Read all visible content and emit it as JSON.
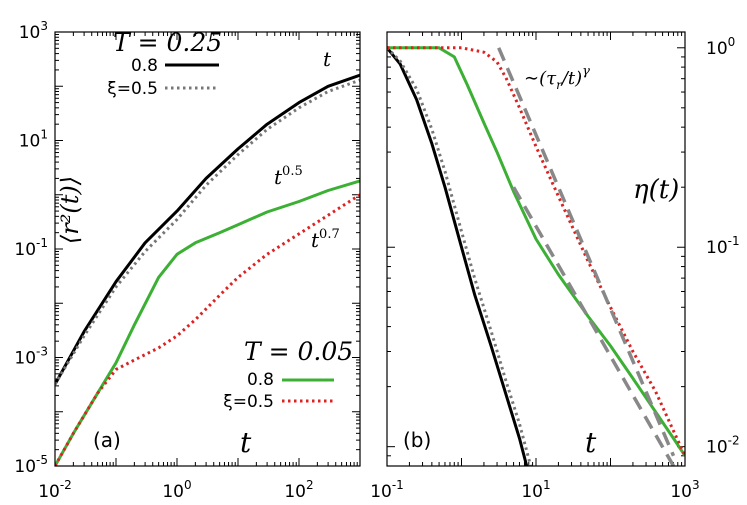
{
  "chart_data": [
    {
      "type": "line",
      "panel_label": "(a)",
      "xlabel": "t",
      "ylabel": "⟨r²(t)⟩",
      "xscale": "log",
      "yscale": "log",
      "xlim": [
        0.01,
        1000
      ],
      "ylim": [
        1e-05,
        1000
      ],
      "x_tick_labels": [
        {
          "base": "10",
          "exp": "-2"
        },
        {
          "base": "10",
          "exp": "0"
        },
        {
          "base": "10",
          "exp": "2"
        }
      ],
      "y_tick_labels": [
        {
          "base": "10",
          "exp": "-5"
        },
        {
          "base": "10",
          "exp": "-3"
        },
        {
          "base": "10",
          "exp": "-1"
        },
        {
          "base": "10",
          "exp": "1"
        },
        {
          "base": "10",
          "exp": "3"
        }
      ],
      "legend_groups": [
        {
          "title": "T = 0.25",
          "placement": "top-left",
          "entries": [
            "0.8",
            "ξ=0.5"
          ]
        },
        {
          "title": "T = 0.05",
          "placement": "bottom-right",
          "entries": [
            "0.8",
            "ξ=0.5"
          ]
        }
      ],
      "annotations": [
        {
          "text": "t",
          "sup": ""
        },
        {
          "text": "t",
          "sup": "0.5"
        },
        {
          "text": "t",
          "sup": "0.7"
        }
      ],
      "series": [
        {
          "legend_group": 0,
          "label": "0.8",
          "color": "#000000",
          "dash": "solid",
          "x": [
            0.01,
            0.03,
            0.1,
            0.3,
            1,
            3,
            10,
            30,
            100,
            300,
            1000
          ],
          "y": [
            0.00032,
            0.003,
            0.025,
            0.13,
            0.5,
            2.0,
            7.0,
            20,
            50,
            100,
            160
          ]
        },
        {
          "legend_group": 0,
          "label": "ξ=0.5",
          "color": "#777777",
          "dash": "dotted",
          "x": [
            0.01,
            0.03,
            0.1,
            0.3,
            1,
            3,
            10,
            30,
            100,
            300,
            1000
          ],
          "y": [
            0.00032,
            0.0025,
            0.02,
            0.09,
            0.35,
            1.5,
            5.5,
            16,
            40,
            80,
            130
          ]
        },
        {
          "legend_group": 1,
          "label": "0.8",
          "color": "#3cb034",
          "dash": "solid",
          "x": [
            0.01,
            0.02,
            0.05,
            0.1,
            0.2,
            0.5,
            1,
            2,
            5,
            10,
            30,
            100,
            300,
            1000
          ],
          "y": [
            1e-05,
            4e-05,
            0.00022,
            0.0008,
            0.004,
            0.03,
            0.08,
            0.13,
            0.2,
            0.28,
            0.48,
            0.75,
            1.2,
            1.8
          ]
        },
        {
          "legend_group": 1,
          "label": "ξ=0.5",
          "color": "#dd2222",
          "dash": "dotted",
          "x": [
            0.01,
            0.02,
            0.05,
            0.1,
            0.2,
            0.5,
            1,
            2,
            5,
            10,
            30,
            100,
            300,
            1000
          ],
          "y": [
            1e-05,
            4e-05,
            0.00022,
            0.0006,
            0.0009,
            0.0015,
            0.0025,
            0.005,
            0.014,
            0.03,
            0.08,
            0.19,
            0.42,
            1.0
          ]
        }
      ],
      "colors": {
        "black": "#000000",
        "gray": "#777777",
        "green": "#3cb034",
        "red": "#dd2222"
      }
    },
    {
      "type": "line",
      "panel_label": "(b)",
      "xlabel": "t",
      "ylabel": "η(t)",
      "ylabel_position": "right",
      "xscale": "log",
      "yscale": "log",
      "xlim": [
        0.1,
        1000
      ],
      "ylim": [
        0.008,
        1.2
      ],
      "x_tick_labels": [
        {
          "base": "10",
          "exp": "-1"
        },
        {
          "base": "10",
          "exp": "1"
        },
        {
          "base": "10",
          "exp": "3"
        }
      ],
      "y_tick_labels": [
        {
          "base": "10",
          "exp": "0"
        },
        {
          "base": "10",
          "exp": "-1"
        },
        {
          "base": "10",
          "exp": "-2"
        }
      ],
      "annotations": [
        {
          "text": "∼(τ",
          "sub": "r",
          "rest": "/t)",
          "sup": "γ"
        }
      ],
      "series": [
        {
          "label": "0.8 (T=0.25)",
          "color": "#000000",
          "dash": "solid",
          "x": [
            0.1,
            0.15,
            0.25,
            0.4,
            0.6,
            1.0,
            1.5,
            2.5,
            4,
            6,
            7.5
          ],
          "y": [
            1.0,
            0.83,
            0.55,
            0.33,
            0.2,
            0.1,
            0.058,
            0.032,
            0.018,
            0.011,
            0.008
          ]
        },
        {
          "label": "ξ=0.5 (T=0.25)",
          "color": "#777777",
          "dash": "dotted",
          "x": [
            0.1,
            0.15,
            0.25,
            0.4,
            0.6,
            1.0,
            1.5,
            2.5,
            4,
            6,
            8.5
          ],
          "y": [
            1.0,
            0.86,
            0.62,
            0.39,
            0.24,
            0.12,
            0.07,
            0.038,
            0.021,
            0.013,
            0.008
          ]
        },
        {
          "label": "0.8 (T=0.05)",
          "color": "#3cb034",
          "dash": "solid",
          "x": [
            0.1,
            0.5,
            0.8,
            1.2,
            2,
            3,
            5,
            10,
            20,
            50,
            100,
            200,
            400,
            700,
            1000
          ],
          "y": [
            1.0,
            1.0,
            0.9,
            0.65,
            0.42,
            0.3,
            0.19,
            0.11,
            0.073,
            0.045,
            0.032,
            0.022,
            0.015,
            0.011,
            0.009
          ]
        },
        {
          "label": "ξ=0.5 (T=0.05)",
          "color": "#dd2222",
          "dash": "dotted",
          "x": [
            0.1,
            1,
            2,
            3,
            4,
            6,
            10,
            20,
            50,
            100,
            200,
            400,
            700,
            1000
          ],
          "y": [
            1.0,
            1.0,
            0.95,
            0.85,
            0.7,
            0.5,
            0.32,
            0.18,
            0.085,
            0.05,
            0.03,
            0.019,
            0.012,
            0.009
          ]
        },
        {
          "label": "power-law guide (upper)",
          "color": "#888888",
          "dash": "dashed",
          "x": [
            3.16,
            700
          ],
          "y": [
            1.0,
            0.009
          ]
        },
        {
          "label": "power-law guide (lower)",
          "color": "#888888",
          "dash": "dashed",
          "x": [
            5,
            700
          ],
          "y": [
            0.2,
            0.008
          ]
        }
      ]
    }
  ]
}
